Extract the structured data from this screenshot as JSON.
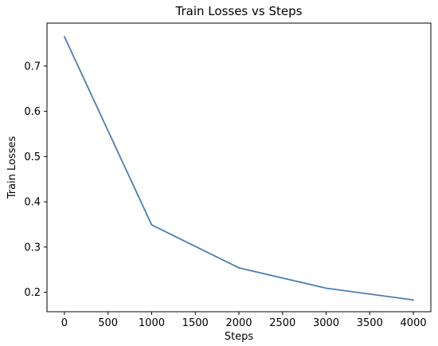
{
  "chart_data": {
    "type": "line",
    "title": "Train Losses vs Steps",
    "xlabel": "Steps",
    "ylabel": "Train Losses",
    "xlim": [
      -200,
      4200
    ],
    "ylim": [
      0.157,
      0.795
    ],
    "xticks": [
      0,
      500,
      1000,
      1500,
      2000,
      2500,
      3000,
      3500,
      4000
    ],
    "yticks": [
      0.2,
      0.3,
      0.4,
      0.5,
      0.6,
      0.7
    ],
    "grid": false,
    "legend": "none",
    "series": [
      {
        "color": "#4a7db3",
        "x": [
          0,
          1000,
          2000,
          3000,
          4000
        ],
        "y": [
          0.765,
          0.349,
          0.254,
          0.209,
          0.183
        ]
      }
    ]
  }
}
